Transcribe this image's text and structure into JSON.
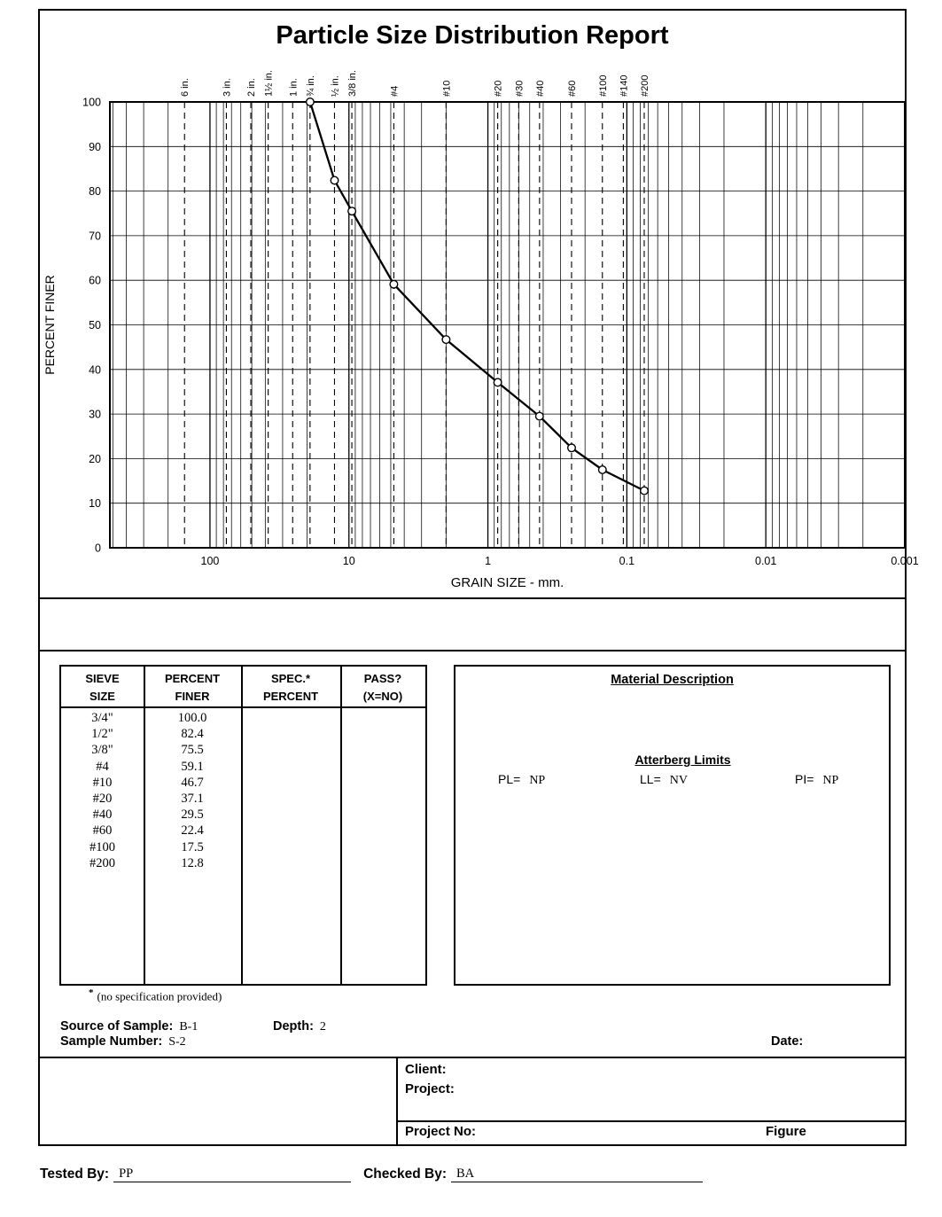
{
  "report": {
    "title": "Particle Size Distribution Report"
  },
  "chart_data": {
    "type": "line",
    "title": "Particle Size Distribution Report",
    "x_scale": "log",
    "xlabel": "GRAIN SIZE - mm.",
    "ylabel": "PERCENT FINER",
    "xlim": [
      525,
      0.001
    ],
    "ylim": [
      0,
      100
    ],
    "grid": true,
    "legend": "none",
    "y_ticks": [
      0,
      10,
      20,
      30,
      40,
      50,
      60,
      70,
      80,
      90,
      100
    ],
    "x_tick_values": [
      100,
      10,
      1,
      0.1,
      0.01,
      0.001
    ],
    "x_tick_labels": [
      "100",
      "10",
      "1",
      "0.1",
      "0.01",
      "0.001"
    ],
    "sieve_marks": [
      {
        "label": "6 in.",
        "mm": 152.4
      },
      {
        "label": "3 in.",
        "mm": 76.2
      },
      {
        "label": "2 in.",
        "mm": 50.8
      },
      {
        "label": "1½ in.",
        "mm": 38.1
      },
      {
        "label": "1 in.",
        "mm": 25.4
      },
      {
        "label": "¾ in.",
        "mm": 19.05
      },
      {
        "label": "½ in.",
        "mm": 12.7
      },
      {
        "label": "3/8 in.",
        "mm": 9.525
      },
      {
        "label": "#4",
        "mm": 4.75
      },
      {
        "label": "#10",
        "mm": 2.0
      },
      {
        "label": "#20",
        "mm": 0.85
      },
      {
        "label": "#30",
        "mm": 0.6
      },
      {
        "label": "#40",
        "mm": 0.425
      },
      {
        "label": "#60",
        "mm": 0.25
      },
      {
        "label": "#100",
        "mm": 0.15
      },
      {
        "label": "#140",
        "mm": 0.106
      },
      {
        "label": "#200",
        "mm": 0.075
      }
    ],
    "series": [
      {
        "points": [
          {
            "sieve": "3/4\"",
            "mm": 19.05,
            "percent_finer": 100.0
          },
          {
            "sieve": "1/2\"",
            "mm": 12.7,
            "percent_finer": 82.4
          },
          {
            "sieve": "3/8\"",
            "mm": 9.525,
            "percent_finer": 75.5
          },
          {
            "sieve": "#4",
            "mm": 4.75,
            "percent_finer": 59.1
          },
          {
            "sieve": "#10",
            "mm": 2.0,
            "percent_finer": 46.7
          },
          {
            "sieve": "#20",
            "mm": 0.85,
            "percent_finer": 37.1
          },
          {
            "sieve": "#40",
            "mm": 0.425,
            "percent_finer": 29.5
          },
          {
            "sieve": "#60",
            "mm": 0.25,
            "percent_finer": 22.4
          },
          {
            "sieve": "#100",
            "mm": 0.15,
            "percent_finer": 17.5
          },
          {
            "sieve": "#200",
            "mm": 0.075,
            "percent_finer": 12.8
          }
        ]
      }
    ]
  },
  "sieve_table": {
    "headers": [
      {
        "line1": "SIEVE",
        "line2": "SIZE"
      },
      {
        "line1": "PERCENT",
        "line2": "FINER"
      },
      {
        "line1": "SPEC.*",
        "line2": "PERCENT"
      },
      {
        "line1": "PASS?",
        "line2": "(X=NO)"
      }
    ],
    "rows": [
      {
        "sieve": "3/4\"",
        "percent_finer": "100.0",
        "spec": "",
        "pass": ""
      },
      {
        "sieve": "1/2\"",
        "percent_finer": "82.4",
        "spec": "",
        "pass": ""
      },
      {
        "sieve": "3/8\"",
        "percent_finer": "75.5",
        "spec": "",
        "pass": ""
      },
      {
        "sieve": "#4",
        "percent_finer": "59.1",
        "spec": "",
        "pass": ""
      },
      {
        "sieve": "#10",
        "percent_finer": "46.7",
        "spec": "",
        "pass": ""
      },
      {
        "sieve": "#20",
        "percent_finer": "37.1",
        "spec": "",
        "pass": ""
      },
      {
        "sieve": "#40",
        "percent_finer": "29.5",
        "spec": "",
        "pass": ""
      },
      {
        "sieve": "#60",
        "percent_finer": "22.4",
        "spec": "",
        "pass": ""
      },
      {
        "sieve": "#100",
        "percent_finer": "17.5",
        "spec": "",
        "pass": ""
      },
      {
        "sieve": "#200",
        "percent_finer": "12.8",
        "spec": "",
        "pass": ""
      }
    ],
    "footnote_star": "*",
    "footnote": "(no specification provided)"
  },
  "material": {
    "title": "Material Description",
    "atterberg": {
      "title": "Atterberg Limits",
      "pl_label": "PL=",
      "pl_value": "NP",
      "ll_label": "LL=",
      "ll_value": "NV",
      "pi_label": "PI=",
      "pi_value": "NP"
    }
  },
  "sample_info": {
    "source_label": "Source of Sample:",
    "source_value": "B-1",
    "depth_label": "Depth:",
    "depth_value": "2",
    "number_label": "Sample Number:",
    "number_value": "S-2",
    "date_label": "Date:",
    "date_value": ""
  },
  "footer": {
    "client_label": "Client:",
    "client_value": "",
    "project_label": "Project:",
    "project_value": "",
    "project_no_label": "Project No:",
    "project_no_value": "",
    "figure_label": "Figure"
  },
  "signature": {
    "tested_by_label": "Tested By:",
    "tested_by_value": "PP",
    "checked_by_label": "Checked By:",
    "checked_by_value": "BA"
  }
}
